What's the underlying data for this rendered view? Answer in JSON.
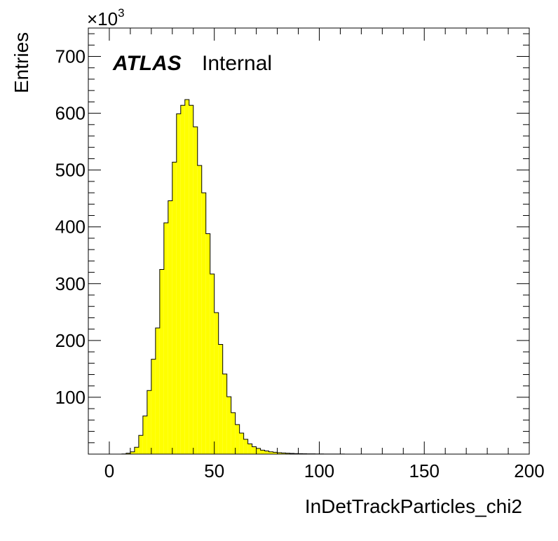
{
  "chart_data": {
    "type": "histogram",
    "xlabel": "InDetTrackParticles_chi2",
    "ylabel": "Entries",
    "y_multiplier": {
      "base": "×10",
      "exponent": "3"
    },
    "annotation": {
      "experiment": "ATLAS",
      "status": "Internal"
    },
    "xlim": [
      -10,
      200
    ],
    "ylim": [
      0,
      750
    ],
    "bin_width": 2,
    "bin_start": 0,
    "x_ticks": [
      "0",
      "50",
      "100",
      "150",
      "200"
    ],
    "x_tick_values": [
      0,
      50,
      100,
      150,
      200
    ],
    "y_ticks": [
      "100",
      "200",
      "300",
      "400",
      "500",
      "600",
      "700"
    ],
    "y_tick_values": [
      100,
      200,
      300,
      400,
      500,
      600,
      700
    ],
    "fill_color": "#ffff00",
    "line_color": "#000000",
    "grid": false,
    "values": [
      0,
      0,
      0,
      0.3,
      1.5,
      4,
      12,
      33,
      67,
      112,
      167,
      222,
      325,
      407,
      446,
      514,
      599,
      614,
      624,
      614,
      576,
      508,
      460,
      388,
      317,
      249,
      193,
      141,
      101,
      73,
      52,
      37,
      26,
      18,
      13,
      10,
      7,
      5.5,
      4,
      3.2,
      2.5,
      2,
      1.5,
      1.2,
      1,
      0.8,
      0.6,
      0.5,
      0.4,
      0.3,
      0.25,
      0.2,
      0.15,
      0.12,
      0.1,
      0.08,
      0.06,
      0.05,
      0.04,
      0.03
    ]
  }
}
